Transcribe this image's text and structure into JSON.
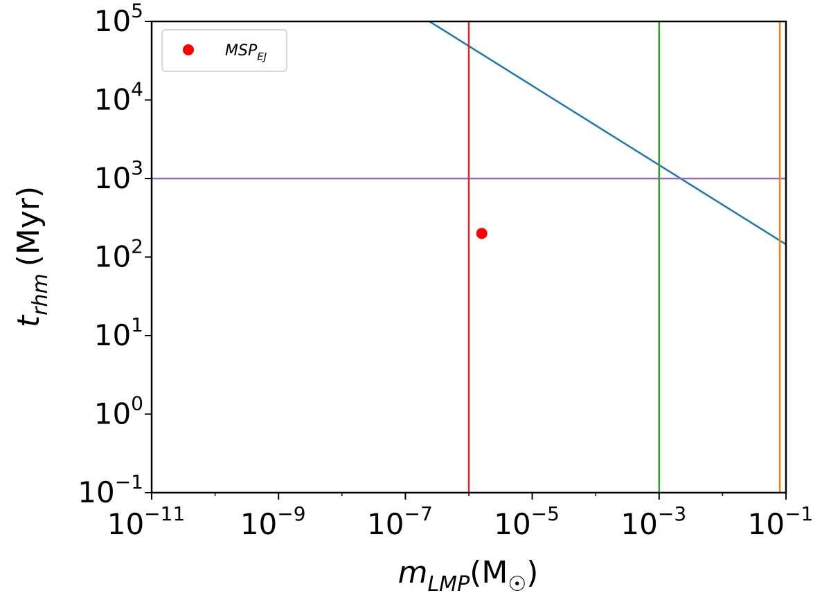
{
  "chart_data": {
    "type": "scatter",
    "title": "",
    "xscale": "log",
    "yscale": "log",
    "xlim": [
      1e-11,
      0.1
    ],
    "ylim": [
      0.1,
      100000
    ],
    "grid": false,
    "xlabel": {
      "base": "m",
      "sub": "LMP",
      "unit_open": "(M",
      "unit_sub": "☉",
      "unit_close": ")"
    },
    "ylabel": {
      "base": "t",
      "sub": "rhm",
      "unit": "(Myr)"
    },
    "xticks": [
      {
        "value": 1e-11,
        "base": "10",
        "exp": "−11"
      },
      {
        "value": 1e-09,
        "base": "10",
        "exp": "−9"
      },
      {
        "value": 1e-07,
        "base": "10",
        "exp": "−7"
      },
      {
        "value": 1e-05,
        "base": "10",
        "exp": "−5"
      },
      {
        "value": 0.001,
        "base": "10",
        "exp": "−3"
      },
      {
        "value": 0.1,
        "base": "10",
        "exp": "−1"
      }
    ],
    "yticks": [
      {
        "value": 0.1,
        "base": "10",
        "exp": "−1"
      },
      {
        "value": 1,
        "base": "10",
        "exp": "0"
      },
      {
        "value": 10,
        "base": "10",
        "exp": "1"
      },
      {
        "value": 100,
        "base": "10",
        "exp": "2"
      },
      {
        "value": 1000,
        "base": "10",
        "exp": "3"
      },
      {
        "value": 10000,
        "base": "10",
        "exp": "4"
      },
      {
        "value": 100000,
        "base": "10",
        "exp": "5"
      }
    ],
    "series": [
      {
        "name": "MSP_EJ",
        "kind": "scatter",
        "color": "#ff0000",
        "points": [
          [
            1.6e-06,
            200
          ]
        ]
      },
      {
        "name": "diagonal",
        "kind": "line",
        "color": "#1f77b4",
        "points": [
          [
            2.4e-07,
            100000
          ],
          [
            0.1,
            145
          ]
        ]
      },
      {
        "name": "horizontal",
        "kind": "hline",
        "color": "#9467bd",
        "y": 1000
      },
      {
        "name": "vline-red",
        "kind": "vline",
        "color": "#d62728",
        "x": 1e-06
      },
      {
        "name": "vline-green",
        "kind": "vline",
        "color": "#2ca02c",
        "x": 0.001
      },
      {
        "name": "vline-orange",
        "kind": "vline",
        "color": "#ff7f0e",
        "x": 0.08
      }
    ],
    "legend": {
      "position": "top-left",
      "entries": [
        {
          "marker": "circle",
          "color": "#ff0000",
          "label": "MSP",
          "label_sub": "EJ"
        }
      ]
    }
  }
}
